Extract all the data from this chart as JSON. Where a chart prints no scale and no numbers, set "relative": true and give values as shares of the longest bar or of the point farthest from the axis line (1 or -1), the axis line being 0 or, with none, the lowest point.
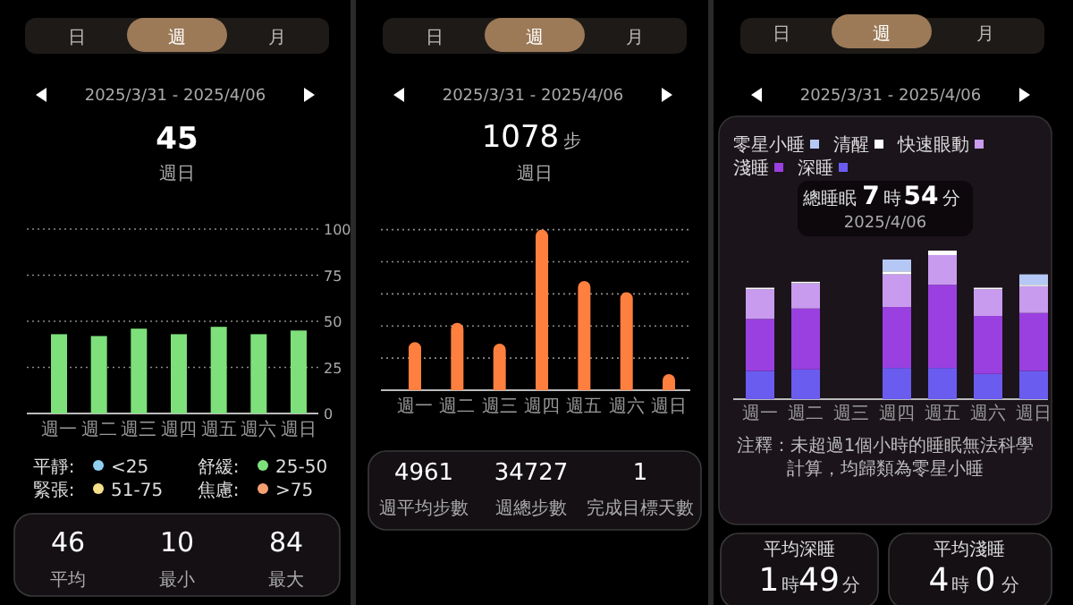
{
  "chart_data": [
    {
      "type": "bar",
      "title": "2025/3/31 - 2025/4/06",
      "categories": [
        "週一",
        "週二",
        "週三",
        "週四",
        "週五",
        "週六",
        "週日"
      ],
      "values": [
        43,
        42,
        46,
        43,
        47,
        43,
        45
      ],
      "color": "#7ee07a",
      "ylim": [
        0,
        100
      ],
      "yticks": [
        0,
        25,
        50,
        75,
        100
      ],
      "grid": "y",
      "annotations": [
        "日",
        "週",
        "月",
        "45",
        "週日",
        "平靜:",
        "<25",
        "舒緩:",
        "25-50",
        "緊張:",
        "51-75",
        "焦慮:",
        ">75",
        "46",
        "平均",
        "10",
        "最小",
        "84",
        "最大"
      ]
    },
    {
      "type": "bar",
      "title": "2025/3/31 - 2025/4/06",
      "categories": [
        "週一",
        "週二",
        "週三",
        "週四",
        "週五",
        "週六",
        "週日"
      ],
      "values": [
        0.3,
        0.42,
        0.29,
        1,
        0.68,
        0.61,
        0.1
      ],
      "color": "#ff7f3f",
      "relative": true,
      "grid": "y",
      "annotations": [
        "日",
        "週",
        "月",
        "1078",
        "步",
        "週日",
        "4961",
        "週平均步數",
        "34727",
        "週總步數",
        "1",
        "完成目標天數"
      ]
    },
    {
      "type": "bar",
      "title": "2025/3/31 - 2025/4/06",
      "categories": [
        "週一",
        "週二",
        "週三",
        "週四",
        "週五",
        "週六",
        "週日"
      ],
      "stacked": true,
      "relative": true,
      "legend": "top",
      "series": [
        {
          "name": "深睡",
          "color": "#6b5cf0",
          "values": [
            0.19,
            0.2,
            0,
            0.21,
            0.21,
            0.17,
            0.19
          ]
        },
        {
          "name": "淺睡",
          "color": "#9a3fe0",
          "values": [
            0.35,
            0.41,
            0,
            0.41,
            0.56,
            0.39,
            0.39
          ]
        },
        {
          "name": "快速眼動",
          "color": "#c89bef",
          "values": [
            0.2,
            0.17,
            0,
            0.22,
            0.2,
            0.18,
            0.18
          ]
        },
        {
          "name": "清醒",
          "color": "#ffffff",
          "values": [
            0.01,
            0.01,
            0,
            0.02,
            0.03,
            0.01,
            0.01
          ]
        },
        {
          "name": "零星小睡",
          "color": "#b5c8f5",
          "values": [
            0,
            0,
            0,
            0.08,
            0,
            0,
            0.07
          ]
        }
      ],
      "annotations": [
        "日",
        "週",
        "月",
        "總睡眠",
        "7",
        "時",
        "54",
        "分",
        "2025/4/06",
        "注釋：未超過1個小時的睡眠無法科學計算，均歸類為零星小睡",
        "平均深睡",
        "1",
        "時",
        "49",
        "分",
        "平均淺睡",
        "4",
        "時",
        "0",
        "分"
      ]
    }
  ]
}
